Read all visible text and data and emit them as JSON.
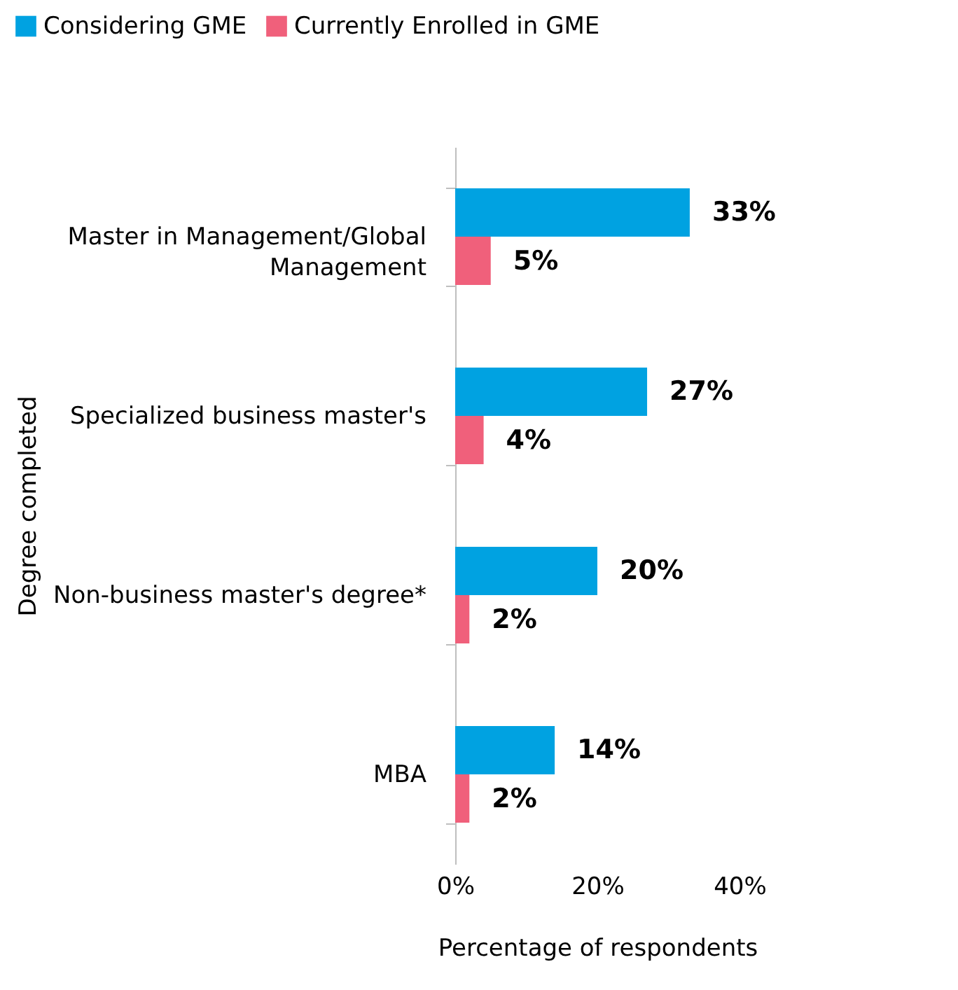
{
  "chart_data": {
    "type": "bar",
    "orientation": "horizontal",
    "xlabel": "Percentage of respondents",
    "ylabel": "Degree completed",
    "categories": [
      "Master in Management/Global Management",
      "Specialized business master's",
      "Non-business master's degree*",
      "MBA"
    ],
    "series": [
      {
        "name": "Considering GME",
        "color": "#00a2e1",
        "values": [
          33,
          27,
          20,
          14
        ],
        "value_labels": [
          "33%",
          "27%",
          "20%",
          "14%"
        ]
      },
      {
        "name": "Currently Enrolled in GME",
        "color": "#f0607b",
        "values": [
          5,
          4,
          2,
          2
        ],
        "value_labels": [
          "5%",
          "4%",
          "2%",
          "2%"
        ]
      }
    ],
    "xlim": [
      0,
      40
    ],
    "xticks": [
      {
        "value": 0,
        "label": "0%"
      },
      {
        "value": 20,
        "label": "20%"
      },
      {
        "value": 40,
        "label": "40%"
      }
    ],
    "legend": "top",
    "grid": false
  }
}
